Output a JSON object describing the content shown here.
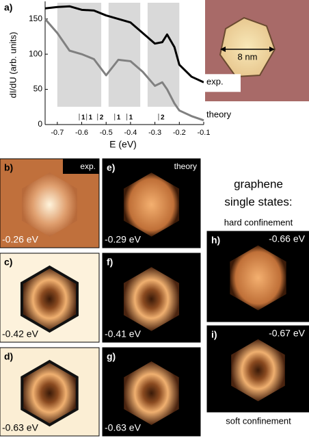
{
  "chart_data": {
    "type": "line",
    "panel_label": "a)",
    "xlabel": "E (eV)",
    "ylabel": "dI/dU (arb. units)",
    "x": [
      -0.75,
      -0.7,
      -0.65,
      -0.6,
      -0.55,
      -0.5,
      -0.45,
      -0.4,
      -0.35,
      -0.3,
      -0.27,
      -0.25,
      -0.22,
      -0.2,
      -0.15,
      -0.1
    ],
    "series": [
      {
        "name": "exp.",
        "color": "#000000",
        "values": [
          165,
          167,
          168,
          163,
          162,
          155,
          150,
          145,
          130,
          115,
          117,
          128,
          110,
          85,
          68,
          60
        ]
      },
      {
        "name": "theory",
        "color": "#808080",
        "values": [
          150,
          130,
          105,
          100,
          93,
          70,
          92,
          90,
          75,
          55,
          60,
          50,
          30,
          20,
          12,
          6
        ]
      }
    ],
    "xlim": [
      -0.75,
      -0.1
    ],
    "xticks": [
      -0.7,
      -0.6,
      -0.5,
      -0.4,
      -0.3,
      -0.2,
      -0.1
    ],
    "ylim": [
      0,
      175
    ],
    "yticks": [
      0,
      50,
      100,
      150
    ],
    "shaded_regions": [
      [
        -0.7,
        -0.52
      ],
      [
        -0.49,
        -0.36
      ],
      [
        -0.33,
        -0.2
      ]
    ],
    "state_markers": [
      {
        "value": -0.61,
        "label": "1"
      },
      {
        "value": -0.58,
        "label": "1"
      },
      {
        "value": -0.535,
        "label": "2"
      },
      {
        "value": -0.465,
        "label": "1"
      },
      {
        "value": -0.415,
        "label": "1"
      },
      {
        "value": -0.285,
        "label": "2"
      }
    ]
  },
  "inset_scale": "8 nm",
  "panels": [
    {
      "label": "b)",
      "tag": "exp.",
      "energy": "-0.26 eV"
    },
    {
      "label": "c)",
      "energy": "-0.42 eV"
    },
    {
      "label": "d)",
      "energy": "-0.63 eV"
    },
    {
      "label": "e)",
      "tag": "theory",
      "energy": "-0.29 eV"
    },
    {
      "label": "f)",
      "energy": "-0.41 eV"
    },
    {
      "label": "g)",
      "energy": "-0.63 eV"
    },
    {
      "label": "h)",
      "energy": "-0.66 eV"
    },
    {
      "label": "i)",
      "energy": "-0.67 eV"
    }
  ],
  "side_heading": [
    "graphene",
    "single states:"
  ],
  "hard": "hard confinement",
  "soft": "soft confinement"
}
